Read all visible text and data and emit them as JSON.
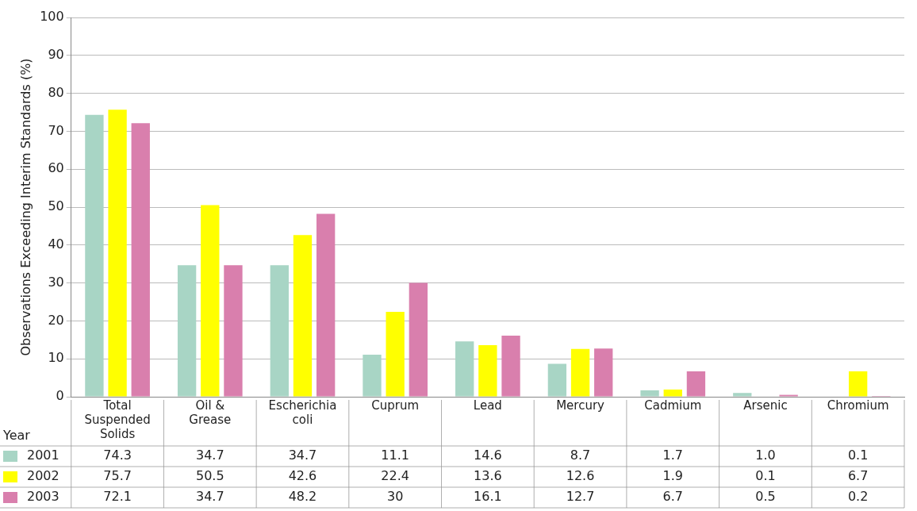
{
  "chart_data": {
    "type": "bar",
    "ylabel": "Observations Exceeding Interim Standards (%)",
    "legend_title": "Year",
    "categories": [
      "Total Suspended Solids",
      "Oil & Grease",
      "Escherichia coli",
      "Cuprum",
      "Lead",
      "Mercury",
      "Cadmium",
      "Arsenic",
      "Chromium"
    ],
    "series": [
      {
        "name": "2001",
        "color": "#a8d5c5",
        "values": [
          74.3,
          34.7,
          34.7,
          11.1,
          14.6,
          8.7,
          1.7,
          1.0,
          0.1
        ],
        "value_labels": [
          "74.3",
          "34.7",
          "34.7",
          "11.1",
          "14.6",
          "8.7",
          "1.7",
          "1.0",
          "0.1"
        ]
      },
      {
        "name": "2002",
        "color": "#ffff00",
        "values": [
          75.7,
          50.5,
          42.6,
          22.4,
          13.6,
          12.6,
          1.9,
          0.1,
          6.7
        ],
        "value_labels": [
          "75.7",
          "50.5",
          "42.6",
          "22.4",
          "13.6",
          "12.6",
          "1.9",
          "0.1",
          "6.7"
        ]
      },
      {
        "name": "2003",
        "color": "#d97fad",
        "values": [
          72.1,
          34.7,
          48.2,
          30,
          16.1,
          12.7,
          6.7,
          0.5,
          0.2
        ],
        "value_labels": [
          "72.1",
          "34.7",
          "48.2",
          "30",
          "16.1",
          "12.7",
          "6.7",
          "0.5",
          "0.2"
        ]
      }
    ],
    "ylim": [
      0,
      100
    ],
    "yticks": [
      0,
      10,
      20,
      30,
      40,
      50,
      60,
      70,
      80,
      90,
      100
    ],
    "grid": "y",
    "legend": "bottom left"
  }
}
